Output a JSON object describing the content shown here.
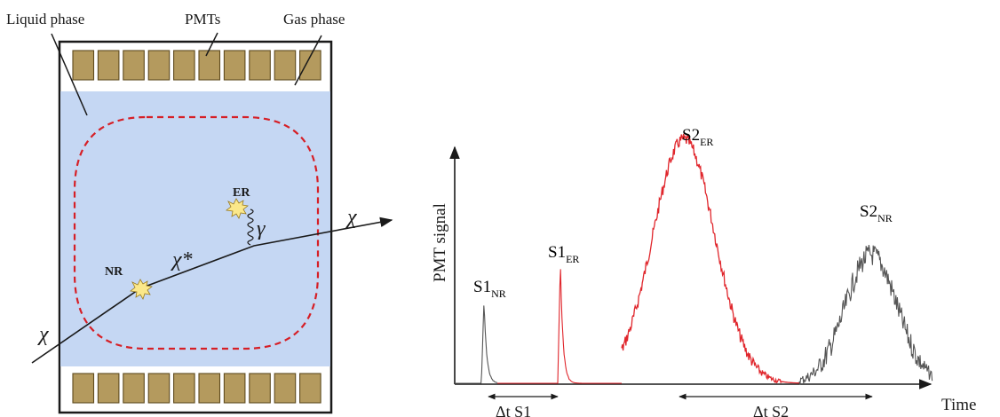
{
  "detector": {
    "labels": {
      "liquid_phase": "Liquid phase",
      "pmts": "PMTs",
      "gas_phase": "Gas phase"
    },
    "pmt_count_per_array": 10,
    "event_labels": {
      "nr": "NR",
      "er": "ER"
    },
    "particles": {
      "incoming": "χ",
      "scattered": "χ*",
      "outgoing": "χ",
      "photon": "γ"
    },
    "colors": {
      "liquid": "#c5d7f3",
      "pmt": "#b49a5e",
      "fiducial": "#d61f26",
      "outline": "#1a1a1a"
    }
  },
  "waveform": {
    "ylabel": "PMT signal",
    "xlabel": "Time",
    "peaks": [
      {
        "id": "s1_nr",
        "main": "S1",
        "sub": "NR",
        "color": "#555555"
      },
      {
        "id": "s1_er",
        "main": "S1",
        "sub": "ER",
        "color": "#e0262c"
      },
      {
        "id": "s2_er",
        "main": "S2",
        "sub": "ER",
        "color": "#e0262c"
      },
      {
        "id": "s2_nr",
        "main": "S2",
        "sub": "NR",
        "color": "#555555"
      }
    ],
    "intervals": {
      "dt_s1": "Δt S1",
      "dt_s2": "Δt S2"
    }
  }
}
